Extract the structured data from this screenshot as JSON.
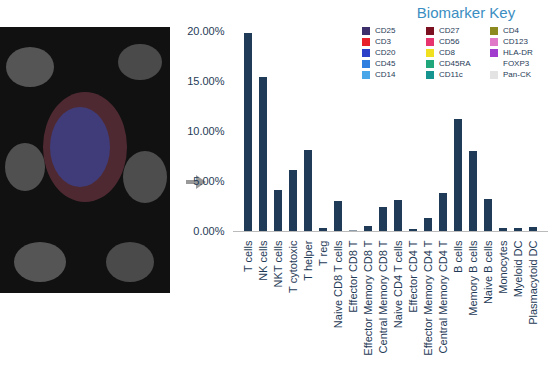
{
  "chart_data": {
    "type": "bar",
    "categories": [
      "T cells",
      "NK cells",
      "NKT cells",
      "T cytotoxic",
      "T helper",
      "T reg",
      "Naive CD8 T cells",
      "Effector CD8 T",
      "Effector Memory CD8 T",
      "Central Memory CD8 T",
      "Naive CD4 T cells",
      "Effector CD4 T",
      "Effector Memory CD4 T",
      "Central Memory CD4 T",
      "B cells",
      "Memory B cells",
      "Naive B cells",
      "Monocytes",
      "Myeloid DC",
      "Plasmacytoid DC"
    ],
    "values": [
      19.8,
      15.4,
      4.1,
      6.1,
      8.1,
      0.3,
      3.0,
      0.05,
      0.5,
      2.4,
      3.1,
      0.2,
      1.3,
      3.8,
      11.2,
      8.0,
      3.2,
      0.3,
      0.3,
      0.4
    ],
    "color": "#1f3b57",
    "ylim": [
      0,
      20
    ],
    "yticks": [
      {
        "value": 0,
        "label": "0.00%"
      },
      {
        "value": 5,
        "label": "5.00%"
      },
      {
        "value": 10,
        "label": "10.00%"
      },
      {
        "value": 15,
        "label": "15.00%"
      },
      {
        "value": 20,
        "label": "20.00%"
      }
    ],
    "grid": false
  },
  "biomarker_key": {
    "title": "Biomarker Key",
    "items": [
      {
        "name": "CD25",
        "color": "#3d2f6b"
      },
      {
        "name": "CD3",
        "color": "#e8202a"
      },
      {
        "name": "CD20",
        "color": "#2b3fc9"
      },
      {
        "name": "CD45",
        "color": "#2f7fe0"
      },
      {
        "name": "CD14",
        "color": "#49a6e8"
      },
      {
        "name": "CD27",
        "color": "#7a1020"
      },
      {
        "name": "CD56",
        "color": "#e8346e"
      },
      {
        "name": "CD8",
        "color": "#f0e020"
      },
      {
        "name": "CD45RA",
        "color": "#1fa67a"
      },
      {
        "name": "CD11c",
        "color": "#16948f"
      },
      {
        "name": "CD4",
        "color": "#8c8a1e"
      },
      {
        "name": "CD123",
        "color": "#e07ac8"
      },
      {
        "name": "HLA-DR",
        "color": "#a23ccf"
      },
      {
        "name": "FOXP3",
        "color": "#ffffff"
      },
      {
        "name": "Pan-CK",
        "color": "#e3e3e3"
      }
    ]
  }
}
